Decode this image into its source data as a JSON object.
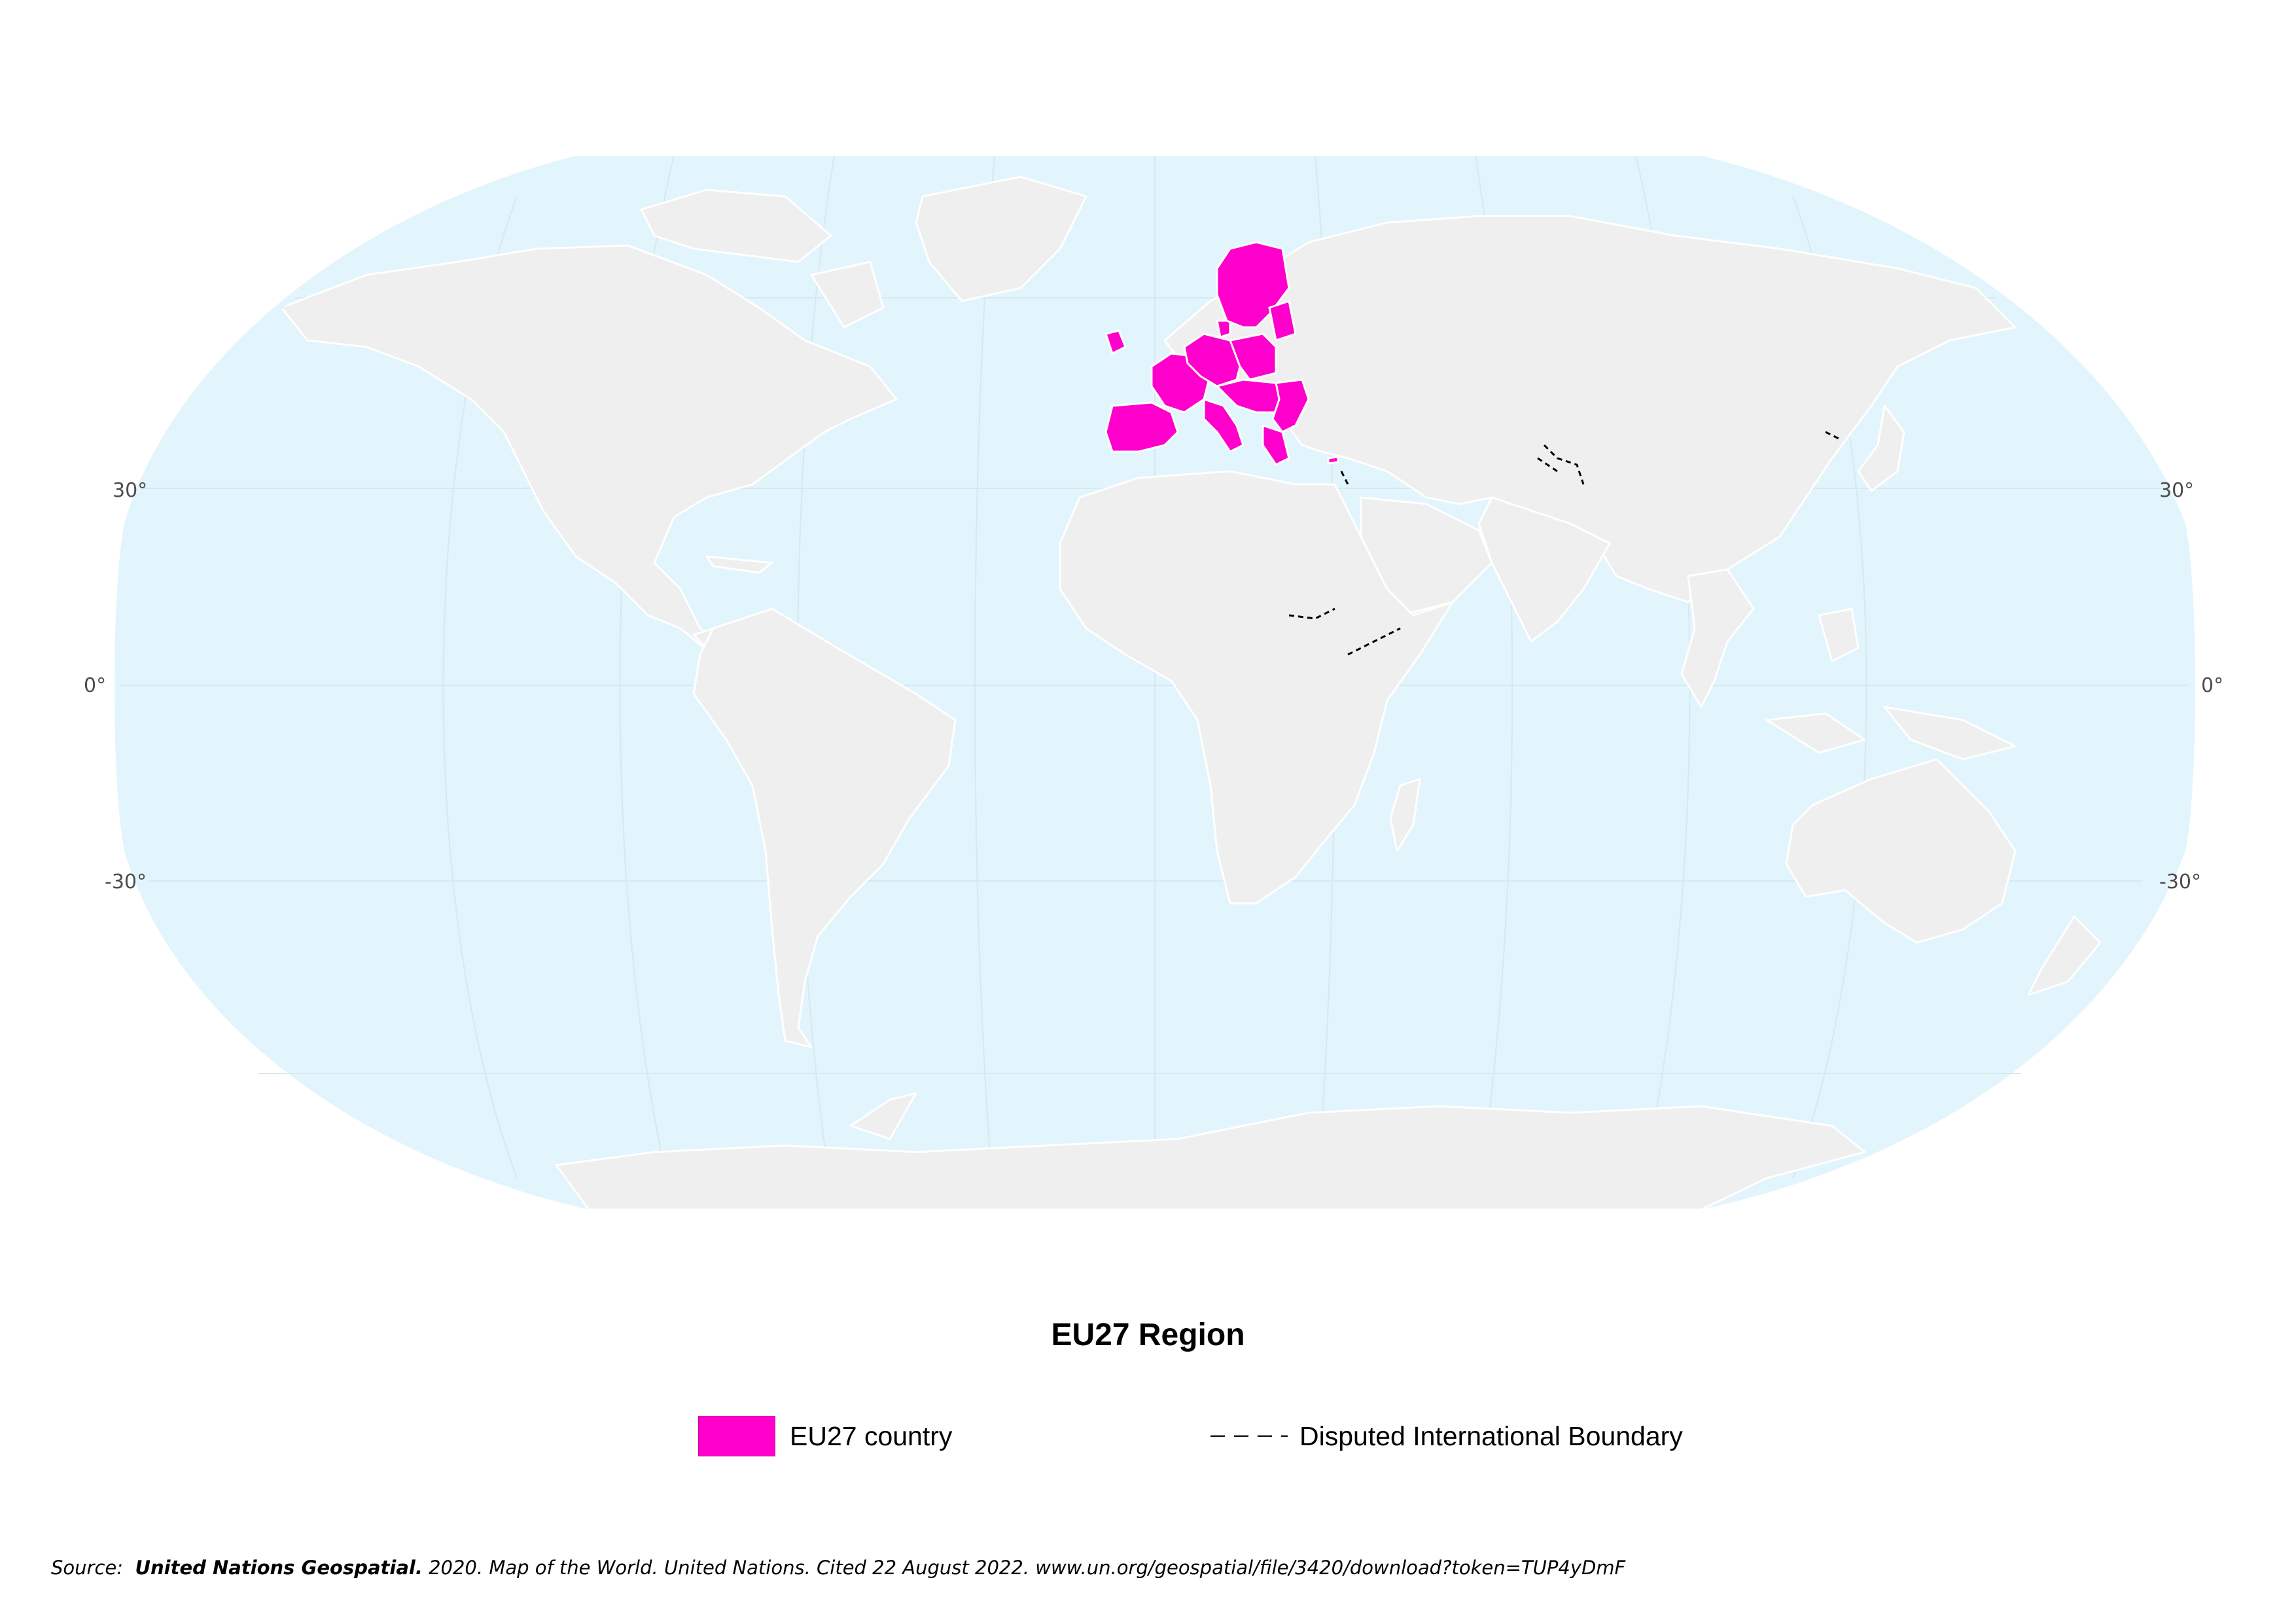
{
  "map": {
    "projection": "Robinson",
    "ocean_color": "#e2f4fc",
    "land_color": "#efefef",
    "border_color": "#ffffff",
    "highlight_color": "#ff00cc",
    "disputed_color": "#000000",
    "highlighted_countries": [
      "Portugal",
      "Spain",
      "France",
      "Ireland",
      "Belgium",
      "Netherlands",
      "Luxembourg",
      "Germany",
      "Denmark",
      "Sweden",
      "Finland",
      "Estonia",
      "Latvia",
      "Lithuania",
      "Poland",
      "Czechia",
      "Slovakia",
      "Austria",
      "Slovenia",
      "Croatia",
      "Hungary",
      "Romania",
      "Bulgaria",
      "Greece",
      "Italy",
      "Malta",
      "Cyprus"
    ],
    "lat_labels": {
      "n30_left": "30°",
      "eq_left": "0°",
      "s30_left": "-30°",
      "n30_right": "30°",
      "eq_right": "0°",
      "s30_right": "-30°"
    }
  },
  "legend": {
    "title": "EU27 Region",
    "items": [
      {
        "label": "EU27 country",
        "color": "#ff00cc",
        "symbol": "filled-rectangle"
      },
      {
        "label": "Disputed International Boundary",
        "symbol": "dashed-line"
      }
    ]
  },
  "source": {
    "prefix": "Source:",
    "org": "United Nations Geospatial.",
    "rest": "2020.  Map of the World. United Nations. Cited 22 August 2022. www.un.org/geospatial/file/3420/download?token=TUP4yDmF"
  }
}
